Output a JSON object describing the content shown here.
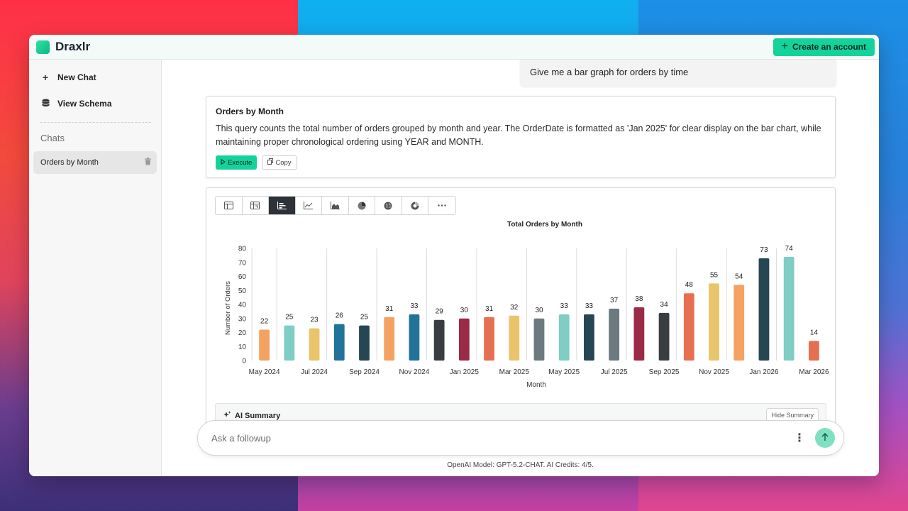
{
  "app": {
    "name": "Draxlr",
    "create_account_label": "Create an account"
  },
  "sidebar": {
    "new_chat_label": "New Chat",
    "view_schema_label": "View Schema",
    "chats_heading": "Chats",
    "chats": [
      {
        "label": "Orders by Month"
      }
    ]
  },
  "user_message": "Give me a bar graph for orders by time",
  "query_card": {
    "title": "Orders by Month",
    "description": "This query counts the total number of orders grouped by month and year. The OrderDate is formatted as 'Jan 2025' for clear display on the bar chart, while maintaining proper chronological ordering using YEAR and MONTH.",
    "execute_label": "Execute",
    "copy_label": "Copy"
  },
  "viz_toolbar": {
    "buttons": [
      "table-icon",
      "pivot-table-icon",
      "bar-chart-icon",
      "line-chart-icon",
      "area-chart-icon",
      "pie-chart-icon",
      "map-icon",
      "donut-chart-icon",
      "more-icon"
    ],
    "active": "bar-chart-icon"
  },
  "chart_data": {
    "type": "bar",
    "title": "Total Orders by Month",
    "xlabel": "Month",
    "ylabel": "Number of Orders",
    "ylim": [
      0,
      80
    ],
    "yticks": [
      0,
      10,
      20,
      30,
      40,
      50,
      60,
      70,
      80
    ],
    "categories": [
      "May 2024",
      "Jun 2024",
      "Jul 2024",
      "Aug 2024",
      "Sep 2024",
      "Oct 2024",
      "Nov 2024",
      "Dec 2024",
      "Jan 2025",
      "Feb 2025",
      "Mar 2025",
      "Apr 2025",
      "May 2025",
      "Jun 2025",
      "Jul 2025",
      "Aug 2025",
      "Sep 2025",
      "Oct 2025",
      "Nov 2025",
      "Dec 2025",
      "Jan 2026",
      "Feb 2026",
      "Mar 2026"
    ],
    "values": [
      22,
      25,
      23,
      26,
      25,
      31,
      33,
      29,
      30,
      31,
      32,
      30,
      33,
      33,
      37,
      38,
      34,
      48,
      55,
      54,
      73,
      74,
      14
    ],
    "tick_labels": [
      "May 2024",
      "Jul 2024",
      "Sep 2024",
      "Nov 2024",
      "Jan 2025",
      "Mar 2025",
      "May 2025",
      "Jul 2025",
      "Sep 2025",
      "Nov 2025",
      "Jan 2026",
      "Mar 2026"
    ],
    "colors": [
      "#f4a261",
      "#7fcdc4",
      "#e9c46a",
      "#21739a",
      "#264653",
      "#f4a261",
      "#21739a",
      "#3a3d40",
      "#9b2a47",
      "#e76f51",
      "#e9c46a",
      "#6c7a80",
      "#7fcdc4",
      "#264653",
      "#6c7a80",
      "#9b2a47",
      "#3a3d40",
      "#e76f51",
      "#e9c46a",
      "#f4a261",
      "#264653",
      "#7fcdc4",
      "#e76f51"
    ],
    "grid": "vertical lines",
    "legend": "none"
  },
  "ai_summary": {
    "title": "AI Summary",
    "hide_label": "Hide Summary"
  },
  "input": {
    "placeholder": "Ask a followup"
  },
  "footer": "OpenAI Model: GPT-5.2-CHAT. AI Credits: 4/5."
}
